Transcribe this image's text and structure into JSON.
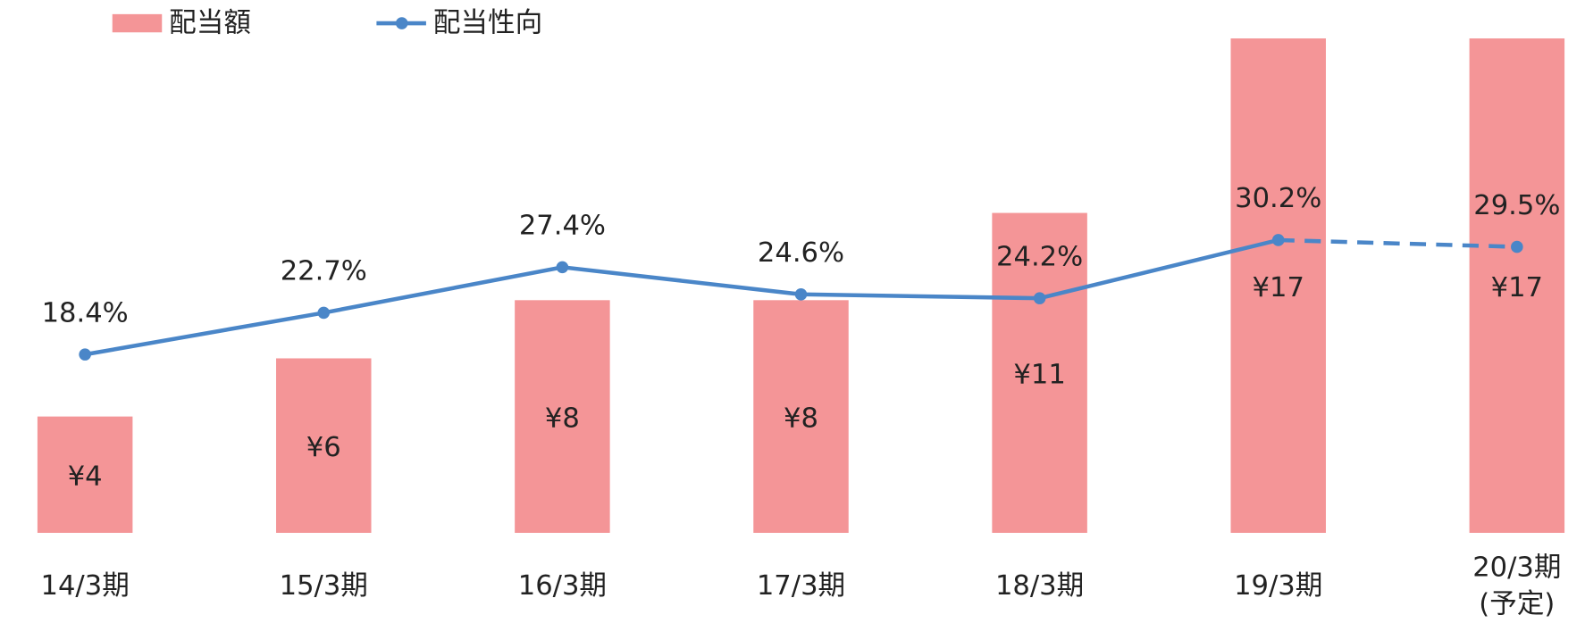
{
  "chart_data": {
    "type": "bar",
    "categories": [
      "14/3期",
      "15/3期",
      "16/3期",
      "17/3期",
      "18/3期",
      "19/3期",
      "20/3期\n(予定)"
    ],
    "series": [
      {
        "name": "配当額",
        "type": "bar",
        "color": "#f49597",
        "values": [
          4,
          6,
          8,
          8,
          11,
          17,
          17
        ],
        "value_labels": [
          "¥4",
          "¥6",
          "¥8",
          "¥8",
          "¥11",
          "¥17",
          "¥17"
        ]
      },
      {
        "name": "配当性向",
        "type": "line",
        "axis": "y2",
        "color": "#4a86c8",
        "dashed_from": 5,
        "values": [
          18.4,
          22.7,
          27.4,
          24.6,
          24.2,
          30.2,
          29.5
        ],
        "value_labels": [
          "18.4%",
          "22.7%",
          "27.4%",
          "24.6%",
          "24.2%",
          "30.2%",
          "29.5%"
        ]
      }
    ],
    "ylim": [
      0,
      17
    ],
    "y2lim": [
      0,
      51
    ],
    "legend": "top-left"
  }
}
